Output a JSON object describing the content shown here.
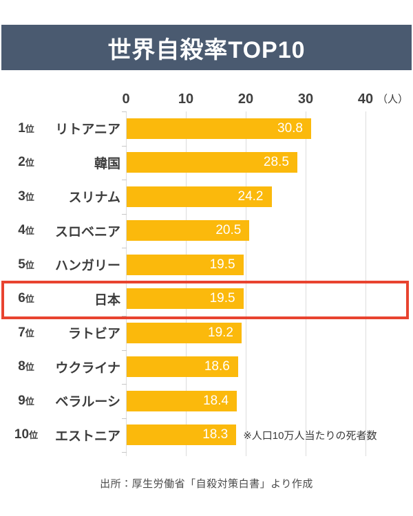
{
  "title": "世界自殺率TOP10",
  "x_axis": {
    "tick_labels": [
      "0",
      "10",
      "20",
      "30",
      "40"
    ],
    "unit_label": "（人）"
  },
  "rows": [
    {
      "rank": "1",
      "rank_suffix": "位",
      "country": "リトアニア",
      "value": "30.8",
      "highlighted": false
    },
    {
      "rank": "2",
      "rank_suffix": "位",
      "country": "韓国",
      "value": "28.5",
      "highlighted": false
    },
    {
      "rank": "3",
      "rank_suffix": "位",
      "country": "スリナム",
      "value": "24.2",
      "highlighted": false
    },
    {
      "rank": "4",
      "rank_suffix": "位",
      "country": "スロベニア",
      "value": "20.5",
      "highlighted": false
    },
    {
      "rank": "5",
      "rank_suffix": "位",
      "country": "ハンガリー",
      "value": "19.5",
      "highlighted": false
    },
    {
      "rank": "6",
      "rank_suffix": "位",
      "country": "日本",
      "value": "19.5",
      "highlighted": true
    },
    {
      "rank": "7",
      "rank_suffix": "位",
      "country": "ラトビア",
      "value": "19.2",
      "highlighted": false
    },
    {
      "rank": "8",
      "rank_suffix": "位",
      "country": "ウクライナ",
      "value": "18.6",
      "highlighted": false
    },
    {
      "rank": "9",
      "rank_suffix": "位",
      "country": "ベラルーシ",
      "value": "18.4",
      "highlighted": false
    },
    {
      "rank": "10",
      "rank_suffix": "位",
      "country": "エストニア",
      "value": "18.3",
      "highlighted": false
    }
  ],
  "note": "※人口10万人当たりの死者数",
  "source": "出所：厚生労働省「自殺対策白書」より作成",
  "colors": {
    "bar": "#FBB90C",
    "header_bg": "#4A5A70",
    "highlight_border": "#E8432F",
    "gridline": "#DCDCDC",
    "text": "#3D3D3D",
    "value_text": "#FFFFFF"
  },
  "chart_data": {
    "type": "bar",
    "orientation": "horizontal",
    "title": "世界自殺率TOP10",
    "categories": [
      "リトアニア",
      "韓国",
      "スリナム",
      "スロベニア",
      "ハンガリー",
      "日本",
      "ラトビア",
      "ウクライナ",
      "ベラルーシ",
      "エストニア"
    ],
    "ranks": [
      "1位",
      "2位",
      "3位",
      "4位",
      "5位",
      "6位",
      "7位",
      "8位",
      "9位",
      "10位"
    ],
    "values": [
      30.8,
      28.5,
      24.2,
      20.5,
      19.5,
      19.5,
      19.2,
      18.6,
      18.4,
      18.3
    ],
    "xlim": [
      0,
      40
    ],
    "x_ticks": [
      0,
      10,
      20,
      30,
      40
    ],
    "unit": "人",
    "grid": true,
    "value_labels": "inside-end",
    "highlighted_category": "日本",
    "highlighted_index": 5,
    "note": "※人口10万人当たりの死者数",
    "source": "出所：厚生労働省「自殺対策白書」より作成"
  }
}
